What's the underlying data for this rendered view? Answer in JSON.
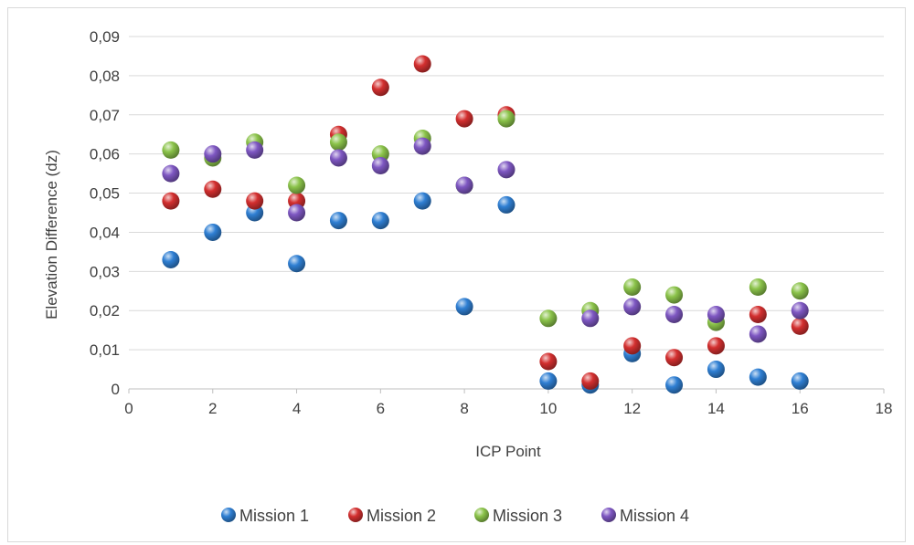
{
  "chart_data": {
    "type": "scatter",
    "title": "",
    "xlabel": "ICP Point",
    "ylabel": "Elevation Difference (dz)",
    "xlim": [
      0,
      18
    ],
    "ylim": [
      0,
      0.09
    ],
    "x_ticks": [
      0,
      2,
      4,
      6,
      8,
      10,
      12,
      14,
      16,
      18
    ],
    "y_ticks": [
      0,
      0.01,
      0.02,
      0.03,
      0.04,
      0.05,
      0.06,
      0.07,
      0.08,
      0.09
    ],
    "y_tick_labels": [
      "0",
      "0,01",
      "0,02",
      "0,03",
      "0,04",
      "0,05",
      "0,06",
      "0,07",
      "0,08",
      "0,09"
    ],
    "x_tick_labels": [
      "0",
      "2",
      "4",
      "6",
      "8",
      "10",
      "12",
      "14",
      "16",
      "18"
    ],
    "grid": "horizontal",
    "legend_position": "bottom",
    "series": [
      {
        "name": "Mission 1",
        "color": "#2f7fd3",
        "x": [
          1,
          2,
          3,
          4,
          5,
          6,
          7,
          8,
          9,
          10,
          11,
          12,
          13,
          14,
          15,
          16
        ],
        "y": [
          0.033,
          0.04,
          0.045,
          0.032,
          0.043,
          0.043,
          0.048,
          0.021,
          0.047,
          0.002,
          0.001,
          0.009,
          0.001,
          0.005,
          0.003,
          0.002
        ]
      },
      {
        "name": "Mission 2",
        "color": "#d32f2f",
        "x": [
          1,
          2,
          3,
          4,
          5,
          6,
          7,
          8,
          9,
          10,
          11,
          12,
          13,
          14,
          15,
          16
        ],
        "y": [
          0.048,
          0.051,
          0.048,
          0.048,
          0.065,
          0.077,
          0.083,
          0.069,
          0.07,
          0.007,
          0.002,
          0.011,
          0.008,
          0.011,
          0.019,
          0.016
        ]
      },
      {
        "name": "Mission 3",
        "color": "#8bc34a",
        "x": [
          1,
          2,
          3,
          4,
          5,
          6,
          7,
          8,
          9,
          10,
          11,
          12,
          13,
          14,
          15,
          16
        ],
        "y": [
          0.061,
          0.059,
          0.063,
          0.052,
          0.063,
          0.06,
          0.064,
          0.052,
          0.069,
          0.018,
          0.02,
          0.026,
          0.024,
          0.017,
          0.026,
          0.025
        ]
      },
      {
        "name": "Mission 4",
        "color": "#7e57c2",
        "x": [
          1,
          2,
          3,
          4,
          5,
          6,
          7,
          8,
          9,
          10,
          11,
          12,
          13,
          14,
          15,
          16
        ],
        "y": [
          0.055,
          0.06,
          0.061,
          0.045,
          0.059,
          0.057,
          0.062,
          0.052,
          0.056,
          null,
          0.018,
          0.021,
          0.019,
          0.019,
          0.014,
          0.02
        ]
      }
    ]
  }
}
